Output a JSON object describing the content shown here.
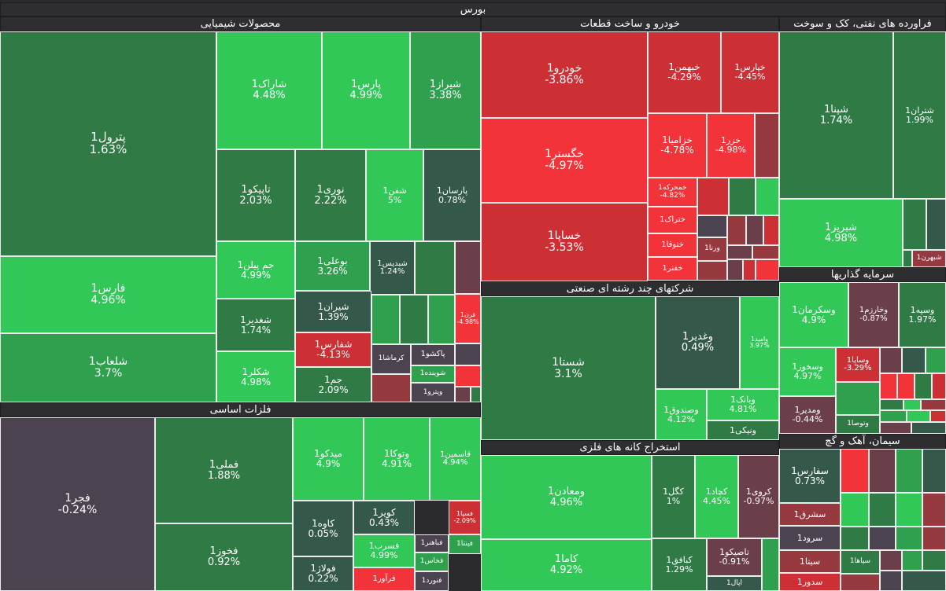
{
  "title": "بورس",
  "colors": {
    "up_strong": "#31c858",
    "up": "#2ea04e",
    "up_dim": "#2f7a45",
    "up_dark": "#34594a",
    "neutral": "#4b4350",
    "down_dim": "#6a3f49",
    "down_mid": "#963a40",
    "down": "#cc3035",
    "down_strong": "#f2333a"
  },
  "sectors": {
    "chemicals": "محصولات شیمیایی",
    "auto": "خودرو و ساخت قطعات",
    "oil": "فراورده های نفتی، کک و سوخت",
    "basic_metals": "فلزات اساسی",
    "multi": "شرکتهای چند رشته ای صنعتی",
    "investment": "سرمایه گذاریها",
    "mining": "استخراج کانه های فلزی",
    "cement": "سیمان، آهک و گچ"
  },
  "tiles": {
    "petrol1": {
      "n": "پترول1",
      "p": "1.63%",
      "c": "#2f7a45"
    },
    "fars1": {
      "n": "فارس1",
      "p": "4.96%",
      "c": "#31c858"
    },
    "shalab1": {
      "n": "شلعاب1",
      "p": "3.7%",
      "c": "#2ea04e"
    },
    "sharak1": {
      "n": "شاراک1",
      "p": "4.48%",
      "c": "#31c858"
    },
    "pars1": {
      "n": "پارس1",
      "p": "4.99%",
      "c": "#31c858"
    },
    "shiraz1": {
      "n": "شیراز1",
      "p": "3.38%",
      "c": "#2ea04e"
    },
    "tapiko1": {
      "n": "تاپیکو1",
      "p": "2.03%",
      "c": "#2f7a45"
    },
    "noori1": {
      "n": "نوری1",
      "p": "2.22%",
      "c": "#2f7a45"
    },
    "shafan1": {
      "n": "شفن1",
      "p": "5%",
      "c": "#31c858"
    },
    "parsan1": {
      "n": "پارسان1",
      "p": "0.78%",
      "c": "#34594a"
    },
    "jampilen1": {
      "n": "جم پیلن1",
      "p": "4.99%",
      "c": "#31c858"
    },
    "booali1": {
      "n": "بوعلی1",
      "p": "3.26%",
      "c": "#2ea04e"
    },
    "shabdis1": {
      "n": "شبدیس1",
      "p": "1.24%",
      "c": "#34594a"
    },
    "shaddir1": {
      "n": "شغدیر1",
      "p": "1.74%",
      "c": "#2f7a45"
    },
    "shiran1": {
      "n": "شیران1",
      "p": "1.39%",
      "c": "#34594a"
    },
    "ghorn1": {
      "n": "قرن1",
      "p": "-4.98%",
      "c": "#f2333a"
    },
    "shafars1": {
      "n": "شفارس1",
      "p": "-4.13%",
      "c": "#cc3035"
    },
    "shaklar1": {
      "n": "شکلر1",
      "p": "4.98%",
      "c": "#31c858"
    },
    "jam1": {
      "n": "جم1",
      "p": "2.09%",
      "c": "#2f7a45"
    },
    "kermasha1": {
      "n": "کرماشا1",
      "c": "#4b4350"
    },
    "pakshoo1": {
      "n": "پاکشو1",
      "c": "#4b4350"
    },
    "shoyandeh1": {
      "n": "شوینده1",
      "c": "#2ea04e"
    },
    "vipetro1": {
      "n": "وپترو1",
      "c": "#4b4350"
    },
    "khodro1": {
      "n": "خودرو1",
      "p": "-3.86%",
      "c": "#cc3035"
    },
    "khegostar1": {
      "n": "خگستر1",
      "p": "-4.97%",
      "c": "#f2333a"
    },
    "khesapa1": {
      "n": "خساپا1",
      "p": "-3.53%",
      "c": "#cc3035"
    },
    "khebahman1": {
      "n": "خبهمن1",
      "p": "-4.29%",
      "c": "#cc3035"
    },
    "khapars1": {
      "n": "خپارس1",
      "p": "-4.45%",
      "c": "#cc3035"
    },
    "khazamia1": {
      "n": "خزامیا1",
      "p": "-4.78%",
      "c": "#f2333a"
    },
    "khazar1": {
      "n": "خزر1",
      "p": "-4.98%",
      "c": "#f2333a"
    },
    "khmehrkeh1": {
      "n": "خمحرکه1",
      "p": "-4.82%",
      "c": "#f2333a"
    },
    "khetrak1": {
      "n": "ختراک1",
      "c": "#f2333a"
    },
    "khetoga1": {
      "n": "ختوقا1",
      "c": "#f2333a"
    },
    "khefnar1": {
      "n": "خفنر1",
      "c": "#f2333a"
    },
    "vernaa1": {
      "n": "ورنا1",
      "c": "#963a40"
    },
    "shina1": {
      "n": "شپنا1",
      "p": "1.74%",
      "c": "#2f7a45"
    },
    "shetran1": {
      "n": "شتران1",
      "p": "1.99%",
      "c": "#2f7a45"
    },
    "shabriz1": {
      "n": "شبریز1",
      "p": "4.98%",
      "c": "#31c858"
    },
    "shebahran1": {
      "n": "شبهرن1",
      "c": "#963a40"
    },
    "foolad_fajr": {
      "n": "فجر1",
      "p": "-0.24%",
      "c": "#4b4350"
    },
    "fameli1": {
      "n": "فملی1",
      "p": "1.88%",
      "c": "#2f7a45"
    },
    "fakhooz1": {
      "n": "فخوز1",
      "p": "0.92%",
      "c": "#2f7a45"
    },
    "midco1": {
      "n": "میدکو1",
      "p": "4.9%",
      "c": "#31c858"
    },
    "vetooka1": {
      "n": "وتوکا1",
      "p": "4.91%",
      "c": "#31c858"
    },
    "ghasemin1": {
      "n": "قاسمین1",
      "p": "4.94%",
      "c": "#31c858"
    },
    "kaveh1": {
      "n": "کاوه1",
      "p": "0.05%",
      "c": "#34594a"
    },
    "kavir1": {
      "n": "کویر1",
      "p": "0.43%",
      "c": "#34594a"
    },
    "fesa1": {
      "n": "فسپا1",
      "p": "-2.09%",
      "c": "#cc3035"
    },
    "fosrab1": {
      "n": "فسرب1",
      "p": "4.99%",
      "c": "#31c858"
    },
    "fabahonar1": {
      "n": "فباهنر1",
      "c": "#4b4350"
    },
    "fenta1": {
      "n": "فپنتا1",
      "c": "#2ea04e"
    },
    "fakhas1": {
      "n": "فخاس1",
      "c": "#2ea04e"
    },
    "foolaj1": {
      "n": "فولاژ1",
      "p": "0.22%",
      "c": "#34594a"
    },
    "faravar1": {
      "n": "فرآور1",
      "c": "#f2333a"
    },
    "fanord1": {
      "n": "فنورد1",
      "c": "#4b4350"
    },
    "shasta1": {
      "n": "شستا1",
      "p": "3.1%",
      "c": "#2f7a45"
    },
    "vaghdir1": {
      "n": "وغدیر1",
      "p": "0.49%",
      "c": "#34594a"
    },
    "vamid1": {
      "n": "وامید1",
      "p": "3.97%",
      "c": "#31c858"
    },
    "vesandoogh1": {
      "n": "وصندوق1",
      "p": "4.12%",
      "c": "#31c858"
    },
    "vabank1": {
      "n": "وبانک1",
      "p": "4.81%",
      "c": "#31c858"
    },
    "vaniki1": {
      "n": "ونیکی1",
      "c": "#2f7a45"
    },
    "vaskarman1": {
      "n": "وسکرمان1",
      "p": "4.9%",
      "c": "#31c858"
    },
    "vakharazm1": {
      "n": "وخارزم1",
      "p": "-0.87%",
      "c": "#6a3f49"
    },
    "vasieh1": {
      "n": "وسپه1",
      "p": "1.97%",
      "c": "#2f7a45"
    },
    "vaskhooz1": {
      "n": "وسخوز1",
      "p": "4.97%",
      "c": "#31c858"
    },
    "vasapa1": {
      "n": "وساپا1",
      "p": "-3.29%",
      "c": "#cc3035"
    },
    "vamadir1": {
      "n": "ومدیر1",
      "p": "-0.44%",
      "c": "#6a3f49"
    },
    "vatosaa1": {
      "n": "وتوصا1",
      "c": "#2f7a45"
    },
    "vamaaden1": {
      "n": "ومعادن1",
      "p": "4.96%",
      "c": "#31c858"
    },
    "kama1": {
      "n": "کاما1",
      "p": "4.92%",
      "c": "#31c858"
    },
    "kegol1": {
      "n": "کگل1",
      "p": "1%",
      "c": "#2f7a45"
    },
    "kechad1": {
      "n": "کچاد1",
      "p": "4.45%",
      "c": "#31c858"
    },
    "kerooy1": {
      "n": "کروی1",
      "p": "-0.97%",
      "c": "#6a3f49"
    },
    "kabafagh1": {
      "n": "کبافق1",
      "p": "1.29%",
      "c": "#2f7a45"
    },
    "tapiko_t": {
      "n": "تاصیکو1",
      "p": "-0.91%",
      "c": "#6a3f49"
    },
    "apal1": {
      "n": "اپال1",
      "c": "#34594a"
    },
    "safars1": {
      "n": "سفارس1",
      "p": "0.73%",
      "c": "#34594a"
    },
    "sesharagh1": {
      "n": "سشرق1",
      "c": "#963a40"
    },
    "serood1": {
      "n": "سرود1",
      "c": "#4b4350"
    },
    "sita1": {
      "n": "سیتا1",
      "c": "#963a40"
    },
    "sepaha1": {
      "n": "سپاها1",
      "c": "#2f7a45"
    },
    "sadoor1": {
      "n": "سدور1",
      "c": "#cc3035"
    }
  }
}
